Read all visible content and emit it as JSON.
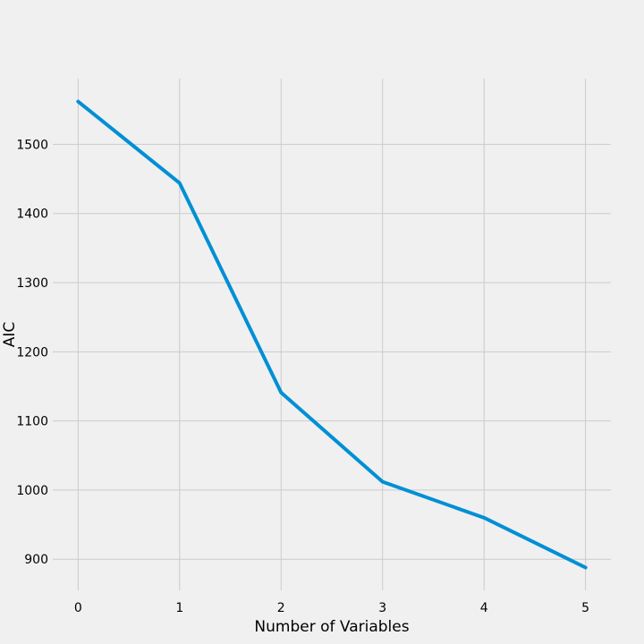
{
  "chart_data": {
    "type": "line",
    "title": "",
    "xlabel": "Number of Variables",
    "ylabel": "AIC",
    "x": [
      0,
      1,
      2,
      3,
      4,
      5
    ],
    "series": [
      {
        "values": [
          1562,
          1444,
          1141,
          1012,
          960,
          888
        ],
        "color": "#008fd5"
      }
    ],
    "xlim": [
      -0.25,
      5.25
    ],
    "ylim": [
      855,
      1595
    ],
    "xticks": [
      0,
      1,
      2,
      3,
      4,
      5
    ],
    "yticks": [
      900,
      1000,
      1100,
      1200,
      1300,
      1400,
      1500
    ],
    "grid": true,
    "legend": "none",
    "background": "#f0f0f0"
  }
}
